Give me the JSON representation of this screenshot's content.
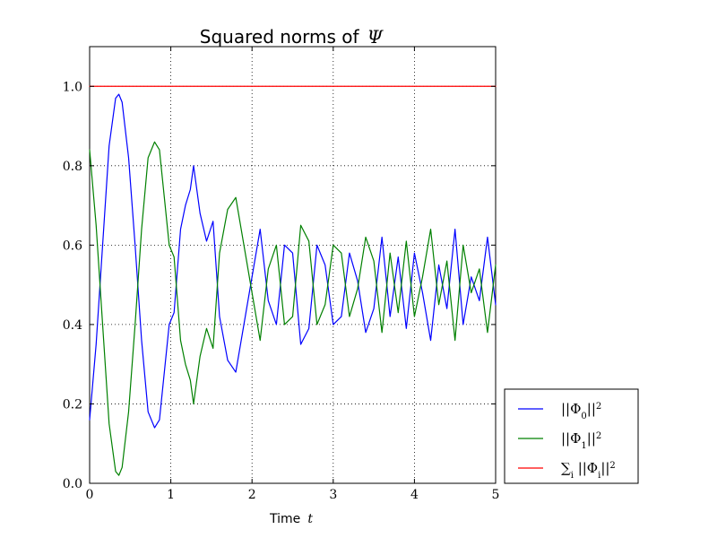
{
  "chart_data": {
    "type": "line",
    "title_prefix": "Squared norms of",
    "title_symbol": "Ψ",
    "xlabel_prefix": "Time",
    "xlabel_symbol": "t",
    "ylabel": "",
    "xlim": [
      0,
      5
    ],
    "ylim": [
      0,
      1.1
    ],
    "grid": true,
    "legend_position": "outside-right-bottom",
    "x_ticks": [
      "0",
      "1",
      "2",
      "3",
      "4",
      "5"
    ],
    "y_ticks": [
      "0.0",
      "0.2",
      "0.4",
      "0.6",
      "0.8",
      "1.0"
    ],
    "colors": {
      "blue": "#0000ff",
      "green": "#008000",
      "red": "#ff0000"
    },
    "series": [
      {
        "name": "||Φ0||^2",
        "color": "#0000ff",
        "x": [
          0.0,
          0.08,
          0.16,
          0.24,
          0.32,
          0.36,
          0.4,
          0.48,
          0.56,
          0.64,
          0.72,
          0.8,
          0.86,
          0.92,
          0.98,
          1.04,
          1.12,
          1.18,
          1.24,
          1.28,
          1.36,
          1.44,
          1.52,
          1.6,
          1.7,
          1.8,
          1.9,
          2.0,
          2.1,
          2.2,
          2.3,
          2.4,
          2.5,
          2.6,
          2.7,
          2.8,
          2.9,
          3.0,
          3.1,
          3.2,
          3.3,
          3.4,
          3.5,
          3.6,
          3.7,
          3.8,
          3.9,
          4.0,
          4.1,
          4.2,
          4.3,
          4.4,
          4.5,
          4.6,
          4.7,
          4.8,
          4.9,
          5.0
        ],
        "y": [
          0.16,
          0.35,
          0.6,
          0.85,
          0.97,
          0.98,
          0.96,
          0.82,
          0.6,
          0.36,
          0.18,
          0.14,
          0.16,
          0.28,
          0.4,
          0.43,
          0.64,
          0.7,
          0.74,
          0.8,
          0.68,
          0.61,
          0.66,
          0.42,
          0.31,
          0.28,
          0.4,
          0.52,
          0.64,
          0.46,
          0.4,
          0.6,
          0.58,
          0.35,
          0.39,
          0.6,
          0.55,
          0.4,
          0.42,
          0.58,
          0.51,
          0.38,
          0.44,
          0.62,
          0.42,
          0.57,
          0.39,
          0.58,
          0.48,
          0.36,
          0.55,
          0.44,
          0.64,
          0.4,
          0.52,
          0.46,
          0.62,
          0.45
        ]
      },
      {
        "name": "||Φ1||^2",
        "color": "#008000",
        "x": [
          0.0,
          0.08,
          0.16,
          0.24,
          0.32,
          0.36,
          0.4,
          0.48,
          0.56,
          0.64,
          0.72,
          0.8,
          0.86,
          0.92,
          0.98,
          1.04,
          1.12,
          1.18,
          1.24,
          1.28,
          1.36,
          1.44,
          1.52,
          1.6,
          1.7,
          1.8,
          1.9,
          2.0,
          2.1,
          2.2,
          2.3,
          2.4,
          2.5,
          2.6,
          2.7,
          2.8,
          2.9,
          3.0,
          3.1,
          3.2,
          3.3,
          3.4,
          3.5,
          3.6,
          3.7,
          3.8,
          3.9,
          4.0,
          4.1,
          4.2,
          4.3,
          4.4,
          4.5,
          4.6,
          4.7,
          4.8,
          4.9,
          5.0
        ],
        "y": [
          0.84,
          0.65,
          0.4,
          0.15,
          0.03,
          0.02,
          0.04,
          0.18,
          0.4,
          0.64,
          0.82,
          0.86,
          0.84,
          0.72,
          0.6,
          0.57,
          0.36,
          0.3,
          0.26,
          0.2,
          0.32,
          0.39,
          0.34,
          0.58,
          0.69,
          0.72,
          0.6,
          0.48,
          0.36,
          0.54,
          0.6,
          0.4,
          0.42,
          0.65,
          0.61,
          0.4,
          0.45,
          0.6,
          0.58,
          0.42,
          0.49,
          0.62,
          0.56,
          0.38,
          0.58,
          0.43,
          0.61,
          0.42,
          0.52,
          0.64,
          0.45,
          0.56,
          0.36,
          0.6,
          0.48,
          0.54,
          0.38,
          0.55
        ]
      },
      {
        "name": "∑i ||Φi||^2",
        "color": "#ff0000",
        "x": [
          0,
          5
        ],
        "y": [
          1.0,
          1.0
        ]
      }
    ]
  }
}
